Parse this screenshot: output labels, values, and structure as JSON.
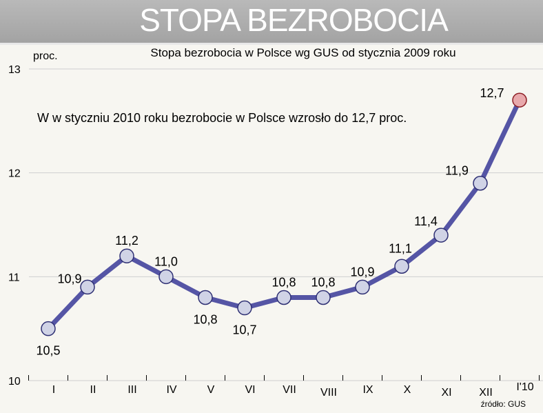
{
  "chart_data": {
    "type": "line",
    "title": "STOPA BEZROBOCIA",
    "subtitle": "Stopa bezrobocia w Polsce wg GUS od stycznia 2009 roku",
    "annotation": "W w styczniu 2010 roku bezrobocie w Polsce wzrosło do 12,7 proc.",
    "ylabel": "proc.",
    "source": "źródło: GUS",
    "categories": [
      "I",
      "II",
      "III",
      "IV",
      "V",
      "VI",
      "VII",
      "VIII",
      "IX",
      "X",
      "XI",
      "XII",
      "I'10"
    ],
    "values": [
      10.5,
      10.9,
      11.2,
      11.0,
      10.8,
      10.7,
      10.8,
      10.8,
      10.9,
      11.1,
      11.4,
      11.9,
      12.7
    ],
    "value_labels": [
      "10,5",
      "10,9",
      "11,2",
      "11,0",
      "10,8",
      "10,7",
      "10,8",
      "10,8",
      "10,9",
      "11,1",
      "11,4",
      "11,9",
      "12,7"
    ],
    "ylim": [
      10,
      13
    ],
    "yticks": [
      10,
      11,
      12,
      13
    ],
    "grid": "horizontal",
    "colors": {
      "line": "#5555a5",
      "marker_fill": "#d0d3e6",
      "marker_stroke": "#2e2f73",
      "highlight_fill": "#e8a9ac",
      "highlight_stroke": "#8d1f25",
      "grid": "#cfcfcf"
    }
  }
}
